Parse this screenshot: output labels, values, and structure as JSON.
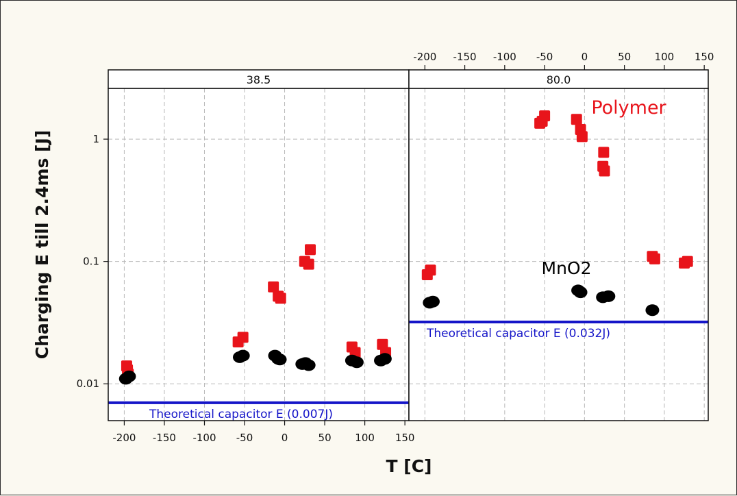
{
  "chart_data": {
    "type": "scatter",
    "title": "",
    "xlabel": "T [C]",
    "ylabel": "Charging E till 2.4ms  [J]",
    "yscale": "log",
    "ylim": [
      0.005,
      2.6
    ],
    "xlim": [
      -220,
      155
    ],
    "grid": true,
    "x_ticks": [
      -200,
      -150,
      -100,
      -50,
      0,
      50,
      100,
      150
    ],
    "x_tick_labels": [
      "-200",
      "-150",
      "-100",
      "-50",
      "0",
      "50",
      "100",
      "150"
    ],
    "y_ticks": [
      0.01,
      0.1,
      1
    ],
    "y_tick_labels": [
      "0.01",
      "0.1",
      "1"
    ],
    "colors": {
      "Polymer": "#e8141b",
      "MnO2": "#000000",
      "reference": "#1515c8"
    },
    "panels": [
      {
        "strip": "38.5",
        "series": [
          {
            "name": "Polymer",
            "marker": "square",
            "points": [
              {
                "x": -197,
                "y": 0.014
              },
              {
                "x": -196,
                "y": 0.013
              },
              {
                "x": -195,
                "y": 0.012
              },
              {
                "x": -58,
                "y": 0.022
              },
              {
                "x": -52,
                "y": 0.024
              },
              {
                "x": -14,
                "y": 0.062
              },
              {
                "x": -8,
                "y": 0.052
              },
              {
                "x": -5,
                "y": 0.05
              },
              {
                "x": 25,
                "y": 0.1
              },
              {
                "x": 30,
                "y": 0.095
              },
              {
                "x": 32,
                "y": 0.125
              },
              {
                "x": 84,
                "y": 0.02
              },
              {
                "x": 88,
                "y": 0.018
              },
              {
                "x": 122,
                "y": 0.021
              },
              {
                "x": 126,
                "y": 0.018
              }
            ]
          },
          {
            "name": "MnO2",
            "marker": "circle",
            "points": [
              {
                "x": -198,
                "y": 0.011
              },
              {
                "x": -194,
                "y": 0.0115
              },
              {
                "x": -56,
                "y": 0.0165
              },
              {
                "x": -52,
                "y": 0.017
              },
              {
                "x": -12,
                "y": 0.017
              },
              {
                "x": -8,
                "y": 0.016
              },
              {
                "x": -6,
                "y": 0.0158
              },
              {
                "x": 22,
                "y": 0.0145
              },
              {
                "x": 26,
                "y": 0.0148
              },
              {
                "x": 30,
                "y": 0.0142
              },
              {
                "x": 84,
                "y": 0.0155
              },
              {
                "x": 90,
                "y": 0.015
              },
              {
                "x": 120,
                "y": 0.0155
              },
              {
                "x": 125,
                "y": 0.016
              }
            ]
          }
        ],
        "reference": {
          "value": 0.007,
          "label": "Theoretical capacitor E (0.007J)"
        }
      },
      {
        "strip": "80.0",
        "series": [
          {
            "name": "Polymer",
            "marker": "square",
            "points": [
              {
                "x": -197,
                "y": 0.078
              },
              {
                "x": -193,
                "y": 0.085
              },
              {
                "x": -56,
                "y": 1.35
              },
              {
                "x": -50,
                "y": 1.55
              },
              {
                "x": -53,
                "y": 1.4
              },
              {
                "x": -10,
                "y": 1.45
              },
              {
                "x": -5,
                "y": 1.2
              },
              {
                "x": -3,
                "y": 1.05
              },
              {
                "x": 24,
                "y": 0.78
              },
              {
                "x": 23,
                "y": 0.6
              },
              {
                "x": 25,
                "y": 0.55
              },
              {
                "x": 85,
                "y": 0.11
              },
              {
                "x": 88,
                "y": 0.105
              },
              {
                "x": 125,
                "y": 0.097
              },
              {
                "x": 129,
                "y": 0.1
              }
            ]
          },
          {
            "name": "MnO2",
            "marker": "circle",
            "points": [
              {
                "x": -194,
                "y": 0.046
              },
              {
                "x": -190,
                "y": 0.047
              },
              {
                "x": -8,
                "y": 0.058
              },
              {
                "x": -5,
                "y": 0.056
              },
              {
                "x": 23,
                "y": 0.051
              },
              {
                "x": 30,
                "y": 0.052
              },
              {
                "x": 85,
                "y": 0.04
              }
            ]
          }
        ],
        "reference": {
          "value": 0.032,
          "label": "Theoretical capacitor E (0.032J)"
        }
      }
    ],
    "annotations": [
      {
        "text": "Polymer",
        "color": "#e8141b"
      },
      {
        "text": "MnO2",
        "color": "#000000"
      }
    ]
  }
}
